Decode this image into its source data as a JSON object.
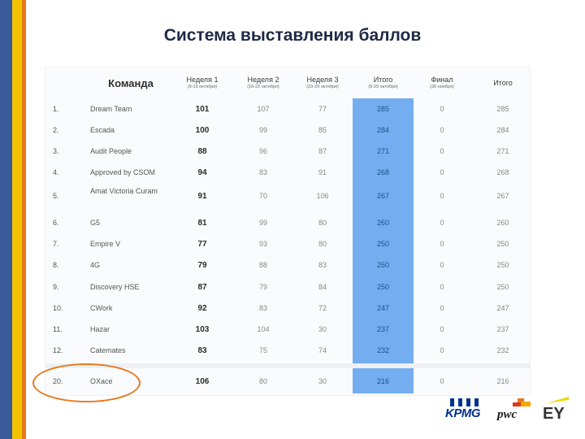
{
  "title": "Система выставления баллов",
  "table": {
    "headers": {
      "team": "Команда",
      "w1": {
        "label": "Неделя 1",
        "sub": "(9-15 октября)"
      },
      "w2": {
        "label": "Неделя 2",
        "sub": "(16-22 октября)"
      },
      "w3": {
        "label": "Неделя 3",
        "sub": "(23-29 октября)"
      },
      "total": {
        "label": "Итого",
        "sub": "(9-29 октября)"
      },
      "final": {
        "label": "Финал",
        "sub": "(30 ноября)"
      },
      "result": {
        "label": "Итого"
      }
    },
    "rows": [
      {
        "rank": "1.",
        "team": "Dream Team",
        "w1": "101",
        "w2": "107",
        "w3": "77",
        "total": "285",
        "final": "0",
        "result": "285"
      },
      {
        "rank": "2.",
        "team": "Escada",
        "w1": "100",
        "w2": "99",
        "w3": "85",
        "total": "284",
        "final": "0",
        "result": "284"
      },
      {
        "rank": "3.",
        "team": "Audit People",
        "w1": "88",
        "w2": "96",
        "w3": "87",
        "total": "271",
        "final": "0",
        "result": "271"
      },
      {
        "rank": "4.",
        "team": "Approved by CSOM",
        "w1": "94",
        "w2": "83",
        "w3": "91",
        "total": "268",
        "final": "0",
        "result": "268"
      },
      {
        "rank": "5.",
        "team": "Amat Victoria Curam",
        "w1": "91",
        "w2": "70",
        "w3": "106",
        "total": "267",
        "final": "0",
        "result": "267"
      },
      {
        "rank": "6.",
        "team": "G5",
        "w1": "81",
        "w2": "99",
        "w3": "80",
        "total": "260",
        "final": "0",
        "result": "260"
      },
      {
        "rank": "7.",
        "team": "Empire V",
        "w1": "77",
        "w2": "93",
        "w3": "80",
        "total": "250",
        "final": "0",
        "result": "250"
      },
      {
        "rank": "8.",
        "team": "4G",
        "w1": "79",
        "w2": "88",
        "w3": "83",
        "total": "250",
        "final": "0",
        "result": "250"
      },
      {
        "rank": "9.",
        "team": "Discovery HSE",
        "w1": "87",
        "w2": "79",
        "w3": "84",
        "total": "250",
        "final": "0",
        "result": "250"
      },
      {
        "rank": "10.",
        "team": "CWork",
        "w1": "92",
        "w2": "83",
        "w3": "72",
        "total": "247",
        "final": "0",
        "result": "247"
      },
      {
        "rank": "11.",
        "team": "Hazar",
        "w1": "103",
        "w2": "104",
        "w3": "30",
        "total": "237",
        "final": "0",
        "result": "237"
      },
      {
        "rank": "12.",
        "team": "Catemates",
        "w1": "83",
        "w2": "75",
        "w3": "74",
        "total": "232",
        "final": "0",
        "result": "232"
      }
    ],
    "highlight_row": {
      "rank": "20.",
      "team": "OXace",
      "w1": "106",
      "w2": "80",
      "w3": "30",
      "total": "216",
      "final": "0",
      "result": "216"
    }
  },
  "logos": {
    "kpmg": "KPMG",
    "pwc": "pwc",
    "ey": "EY"
  },
  "colors": {
    "highlight": "#74aef0",
    "circle": "#e8781e",
    "stripe_blue": "#3a5a99",
    "stripe_yellow": "#f2c300",
    "stripe_orange": "#e8781e"
  }
}
